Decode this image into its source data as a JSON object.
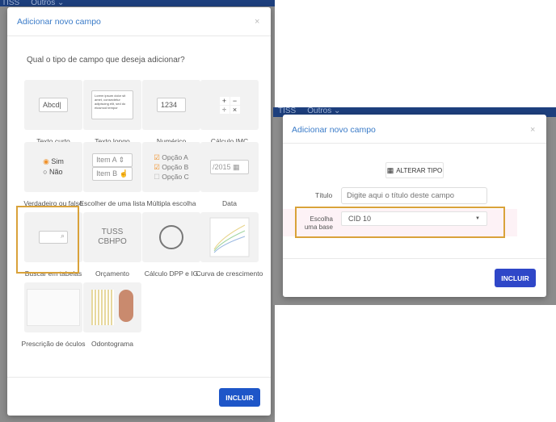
{
  "left": {
    "nav": [
      "TISS",
      "Outros ⌄"
    ],
    "modal": {
      "title": "Adicionar novo campo",
      "close": "×",
      "question": "Qual o tipo de campo que deseja adicionar?",
      "tiles": [
        {
          "label": "Texto curto",
          "preview": "Abcd"
        },
        {
          "label": "Texto longo",
          "preview": "Lorem ipsum dolor sit amet, consectetur adipiscing elit, sed do eiusmod tempor"
        },
        {
          "label": "Numérico",
          "preview": "1234"
        },
        {
          "label": "Cálculo IMC",
          "preview": "+ − ÷ ×"
        },
        {
          "label": "Verdadeiro ou falso",
          "preview": [
            "Sim",
            "Não"
          ]
        },
        {
          "label": "Escolher de uma lista",
          "preview": [
            "Item A",
            "Item B"
          ]
        },
        {
          "label": "Múltipla escolha",
          "preview": [
            "Opção A",
            "Opção B",
            "Opção C"
          ]
        },
        {
          "label": "Data",
          "preview": "/2015"
        },
        {
          "label": "Buscar em tabelas",
          "selected": true
        },
        {
          "label": "Orçamento",
          "preview": "TUSS CBHPO"
        },
        {
          "label": "Cálculo DPP e IG"
        },
        {
          "label": "Curva de crescimento"
        },
        {
          "label": "Prescrição de óculos"
        },
        {
          "label": "Odontograma"
        }
      ],
      "submit": "INCLUIR"
    }
  },
  "right": {
    "nav": [
      "TISS",
      "Outros ⌄"
    ],
    "modal": {
      "title": "Adicionar novo campo",
      "close": "×",
      "change_type": "ALTERAR TIPO",
      "title_label": "Título",
      "title_placeholder": "Digite aqui o título deste campo",
      "base_label": "Escolha uma base",
      "base_value": "CID 10",
      "submit": "INCLUIR"
    }
  },
  "colors": {
    "accent": "#1e56c8",
    "title": "#3a7bc8",
    "highlight": "#d9a23a",
    "navbar": "#1d3f7d"
  }
}
